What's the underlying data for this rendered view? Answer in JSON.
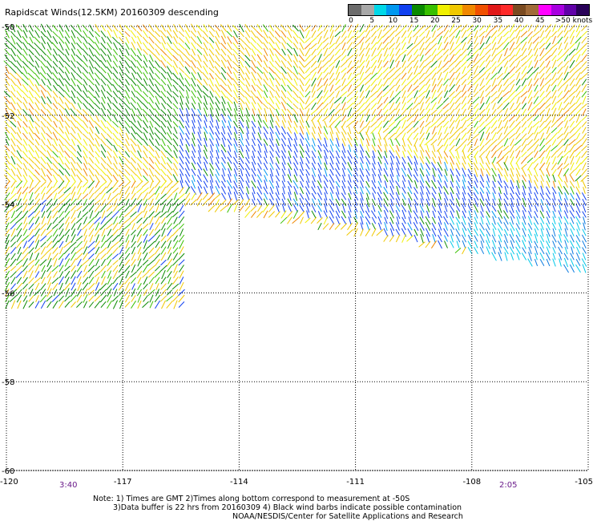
{
  "title": "Rapidscat Winds(12.5KM) 20160309 descending",
  "legend": {
    "colors": [
      "#6b6b6b",
      "#a8a8a8",
      "#00d8e8",
      "#0098f0",
      "#1040f0",
      "#0a8a00",
      "#38c000",
      "#f0f000",
      "#f0c800",
      "#f08800",
      "#f05000",
      "#e01818",
      "#ff2a2a",
      "#7a4a20",
      "#a06a38",
      "#ff00ff",
      "#a800e0",
      "#6000a8",
      "#280058"
    ],
    "ticks": [
      "0",
      "5",
      "10",
      "15",
      "20",
      "25",
      "30",
      "35",
      "40",
      "45",
      ">50 knots"
    ]
  },
  "axes": {
    "x_ticks": [
      "-120",
      "-117",
      "-114",
      "-111",
      "-108",
      "-105"
    ],
    "y_ticks": [
      "-50",
      "-52",
      "-54",
      "-56",
      "-58",
      "-60"
    ],
    "xlim": [
      -120,
      -105
    ],
    "ylim": [
      -50,
      -60
    ]
  },
  "time_labels": {
    "left": "3:40",
    "right": "2:05"
  },
  "notes": {
    "line1": "Note: 1) Times are GMT 2)Times along bottom correspond to measurement at -50S",
    "line2": "3)Data buffer is 22 hrs from 20160309 4) Black wind barbs indicate possible contamination",
    "line3": "NOAA/NESDIS/Center for Satellite Applications and Research"
  }
}
